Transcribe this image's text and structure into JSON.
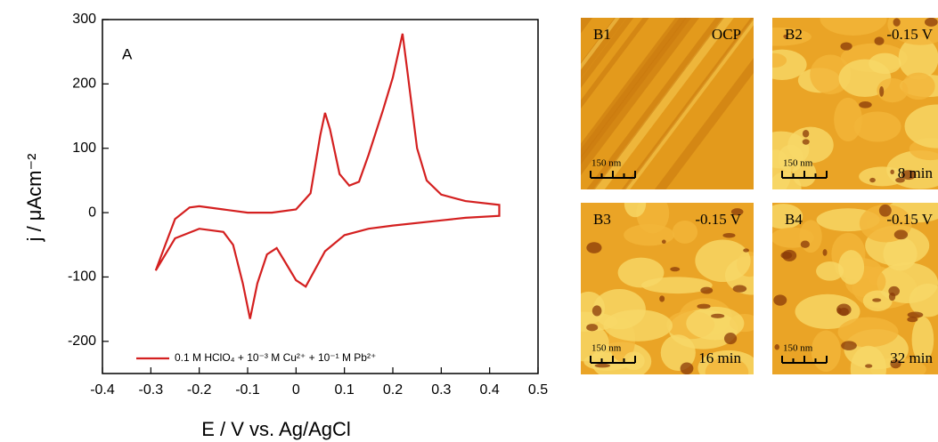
{
  "chart_data": {
    "type": "line",
    "panel_label": "A",
    "x_label": "E / V vs. Ag/AgCl",
    "y_label": "j / μAcm⁻²",
    "x": [
      -0.29,
      -0.27,
      -0.25,
      -0.22,
      -0.2,
      -0.15,
      -0.1,
      -0.05,
      0,
      0.03,
      0.05,
      0.06,
      0.07,
      0.09,
      0.11,
      0.13,
      0.15,
      0.18,
      0.2,
      0.22,
      0.23,
      0.25,
      0.27,
      0.3,
      0.35,
      0.42,
      0.42,
      0.35,
      0.3,
      0.2,
      0.15,
      0.1,
      0.06,
      0.02,
      0,
      -0.02,
      -0.04,
      -0.06,
      -0.08,
      -0.095,
      -0.11,
      -0.13,
      -0.15,
      -0.2,
      -0.25,
      -0.29
    ],
    "series": [
      {
        "name": "0.1 M HClO₄ + 10⁻³ M Cu²⁺ + 10⁻¹ M Pb²⁺",
        "color": "#d42020",
        "values": [
          -90,
          -50,
          -10,
          8,
          10,
          5,
          0,
          0,
          5,
          30,
          120,
          155,
          130,
          60,
          42,
          48,
          90,
          160,
          210,
          278,
          220,
          100,
          50,
          28,
          18,
          12,
          -5,
          -8,
          -12,
          -20,
          -25,
          -35,
          -60,
          -115,
          -105,
          -80,
          -55,
          -65,
          -110,
          -165,
          -110,
          -50,
          -30,
          -25,
          -40,
          -90
        ]
      }
    ],
    "xlim": [
      -0.4,
      0.5
    ],
    "xticks": [
      -0.4,
      -0.3,
      -0.2,
      -0.1,
      0,
      0.1,
      0.2,
      0.3,
      0.4,
      0.5
    ],
    "ylim": [
      -250,
      300
    ],
    "yticks": [
      -200,
      -100,
      0,
      100,
      200,
      300
    ],
    "legend": "lower left"
  },
  "afm_panels": [
    {
      "label": "B1",
      "condition": "OCP",
      "scale": "150 nm"
    },
    {
      "label": "B2",
      "condition": "-0.15 V",
      "time": "8 min",
      "scale": "150 nm"
    },
    {
      "label": "B3",
      "condition": "-0.15 V",
      "time": "16 min",
      "scale": "150 nm"
    },
    {
      "label": "B4",
      "condition": "-0.15 V",
      "time": "32 min",
      "scale": "150 nm"
    }
  ]
}
